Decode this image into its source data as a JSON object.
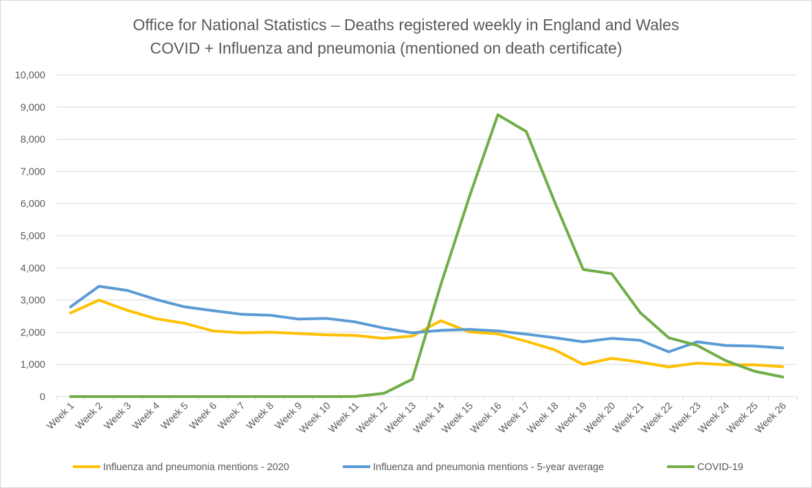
{
  "chart_data": {
    "type": "line",
    "title": "Office for National Statistics – Deaths registered weekly in England and Wales",
    "subtitle": "COVID + Influenza and pneumonia (mentioned on death certificate)",
    "xlabel": "",
    "ylabel": "",
    "ylim": [
      0,
      10000
    ],
    "yticks": [
      "0",
      "1,000",
      "2,000",
      "3,000",
      "4,000",
      "5,000",
      "6,000",
      "7,000",
      "8,000",
      "9,000",
      "10,000"
    ],
    "ytick_values": [
      0,
      1000,
      2000,
      3000,
      4000,
      5000,
      6000,
      7000,
      8000,
      9000,
      10000
    ],
    "grid": true,
    "legend_position": "bottom",
    "categories": [
      "Week 1",
      "Week 2",
      "Week 3",
      "Week 4",
      "Week 5",
      "Week 6",
      "Week 7",
      "Week 8",
      "Week 9",
      "Week 10",
      "Week 11",
      "Week 12",
      "Week 13",
      "Week 14",
      "Week 15",
      "Week 16",
      "Week 17",
      "Week 18",
      "Week 19",
      "Week 20",
      "Week 21",
      "Week 22",
      "Week 23",
      "Week 24",
      "Week 25",
      "Week 26"
    ],
    "series": [
      {
        "name": "Influenza and pneumonia mentions - 2020",
        "color": "#ffc000",
        "values": [
          2600,
          3000,
          2680,
          2420,
          2280,
          2040,
          1980,
          2000,
          1960,
          1920,
          1900,
          1810,
          1880,
          2360,
          2010,
          1950,
          1720,
          1450,
          1000,
          1190,
          1070,
          920,
          1040,
          990,
          990,
          930
        ]
      },
      {
        "name": "Influenza and pneumonia mentions - 5-year average",
        "color": "#5b9bd5",
        "values": [
          2790,
          3430,
          3300,
          3020,
          2790,
          2670,
          2560,
          2530,
          2410,
          2430,
          2320,
          2130,
          1980,
          2060,
          2090,
          2040,
          1940,
          1830,
          1700,
          1810,
          1750,
          1390,
          1700,
          1590,
          1570,
          1510
        ]
      },
      {
        "name": "COVID-19",
        "color": "#70ad47",
        "values": [
          0,
          0,
          0,
          0,
          0,
          0,
          0,
          0,
          0,
          0,
          5,
          100,
          540,
          3480,
          6210,
          8760,
          8240,
          6040,
          3950,
          3820,
          2610,
          1830,
          1590,
          1120,
          790,
          610
        ]
      }
    ]
  }
}
